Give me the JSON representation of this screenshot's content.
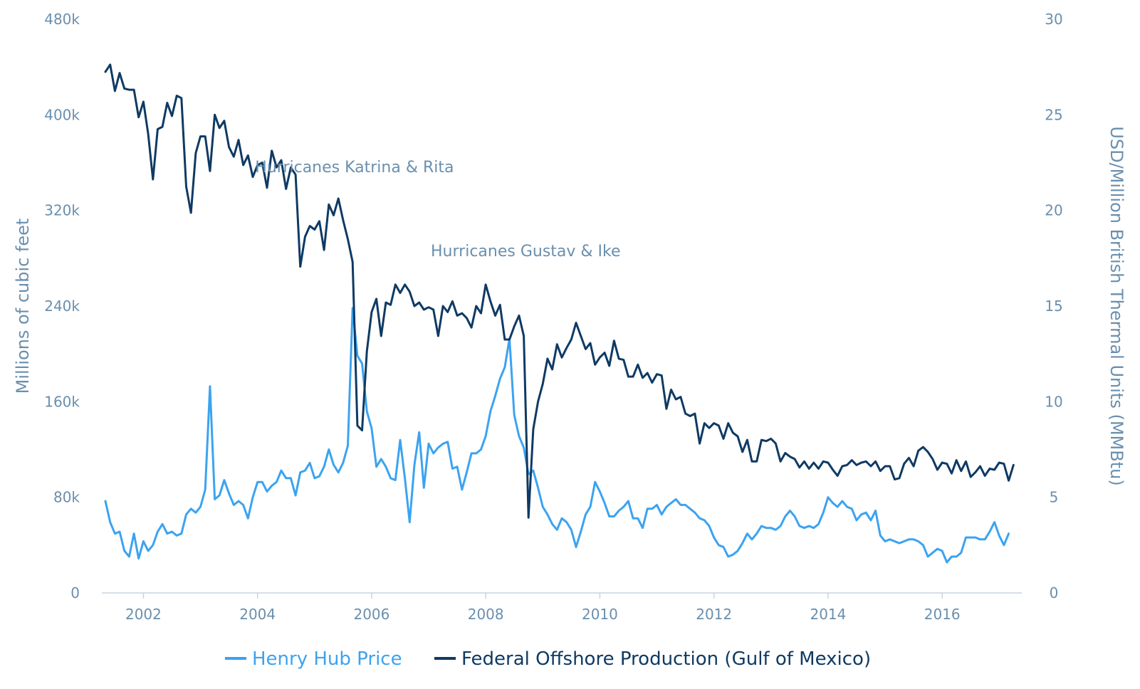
{
  "chart_data": {
    "type": "line",
    "left_axis": {
      "label": "Millions of cubic feet",
      "min": 0,
      "max": 480000,
      "ticks": [
        0,
        80000,
        160000,
        240000,
        320000,
        400000,
        480000
      ],
      "tick_labels": [
        "0",
        "80k",
        "160k",
        "240k",
        "320k",
        "400k",
        "480k"
      ]
    },
    "right_axis": {
      "label": "USD/Million British Thermal Units (MMBtu)",
      "min": 0,
      "max": 30,
      "ticks": [
        0,
        5,
        10,
        15,
        20,
        25,
        30
      ],
      "tick_labels": [
        "0",
        "5",
        "10",
        "15",
        "20",
        "25",
        "30"
      ]
    },
    "x_axis": {
      "min": 2001.333,
      "max": 2017.333,
      "ticks": [
        2002,
        2004,
        2006,
        2008,
        2010,
        2012,
        2014,
        2016
      ],
      "tick_labels": [
        "2002",
        "2004",
        "2006",
        "2008",
        "2010",
        "2012",
        "2014",
        "2016"
      ]
    },
    "annotations": [
      {
        "text": "Hurricanes Katrina & Rita",
        "x": 2005.7
      },
      {
        "text": "Hurricanes Gustav & Ike",
        "x": 2008.7
      }
    ],
    "legend_position": "bottom-center",
    "grid": false,
    "series": [
      {
        "name": "Henry Hub Price",
        "axis": "right",
        "color": "#3ba3f0",
        "x_start": 2001.333,
        "x_step": 0.08333,
        "values": [
          4.8,
          3.7,
          3.1,
          3.2,
          2.2,
          1.9,
          3.1,
          1.8,
          2.7,
          2.2,
          2.5,
          3.2,
          3.6,
          3.1,
          3.2,
          3.0,
          3.1,
          4.1,
          4.4,
          4.2,
          4.5,
          5.4,
          10.8,
          4.9,
          5.1,
          5.9,
          5.2,
          4.6,
          4.8,
          4.6,
          3.9,
          5.0,
          5.8,
          5.8,
          5.3,
          5.6,
          5.8,
          6.4,
          6.0,
          6.0,
          5.1,
          6.3,
          6.4,
          6.8,
          6.0,
          6.1,
          6.6,
          7.5,
          6.7,
          6.3,
          6.8,
          7.7,
          14.9,
          12.4,
          12.0,
          9.5,
          8.6,
          6.6,
          7.0,
          6.6,
          6.0,
          5.9,
          8.0,
          6.0,
          3.7,
          6.7,
          8.4,
          5.5,
          7.8,
          7.3,
          7.6,
          7.8,
          7.9,
          6.5,
          6.6,
          5.4,
          6.3,
          7.3,
          7.3,
          7.5,
          8.2,
          9.5,
          10.3,
          11.2,
          11.8,
          13.3,
          9.3,
          8.2,
          7.6,
          6.2,
          6.4,
          5.5,
          4.5,
          4.1,
          3.6,
          3.3,
          3.9,
          3.7,
          3.3,
          2.4,
          3.2,
          4.1,
          4.5,
          5.8,
          5.3,
          4.7,
          4.0,
          4.0,
          4.3,
          4.5,
          4.8,
          3.9,
          3.9,
          3.4,
          4.4,
          4.4,
          4.6,
          4.1,
          4.5,
          4.7,
          4.9,
          4.6,
          4.6,
          4.4,
          4.2,
          3.9,
          3.8,
          3.5,
          2.9,
          2.5,
          2.4,
          1.9,
          2.0,
          2.2,
          2.6,
          3.1,
          2.8,
          3.1,
          3.5,
          3.4,
          3.4,
          3.3,
          3.5,
          4.0,
          4.3,
          4.0,
          3.5,
          3.4,
          3.5,
          3.4,
          3.6,
          4.2,
          5.0,
          4.7,
          4.5,
          4.8,
          4.5,
          4.4,
          3.8,
          4.1,
          4.2,
          3.8,
          4.3,
          3.0,
          2.7,
          2.8,
          2.7,
          2.6,
          2.7,
          2.8,
          2.8,
          2.7,
          2.5,
          1.9,
          2.1,
          2.3,
          2.2,
          1.6,
          1.9,
          1.9,
          2.1,
          2.9,
          2.9,
          2.9,
          2.8,
          2.8,
          3.2,
          3.7,
          3.0,
          2.5,
          3.1
        ]
      },
      {
        "name": "Federal Offshore Production (Gulf of Mexico)",
        "axis": "left",
        "color": "#0f3a63",
        "x_start": 2001.333,
        "x_step": 0.08333,
        "values": [
          436000,
          442000,
          420000,
          435000,
          422000,
          421000,
          421000,
          398000,
          411000,
          384000,
          346000,
          388000,
          390000,
          410000,
          399000,
          416000,
          414000,
          340000,
          318000,
          368000,
          382000,
          382000,
          353000,
          400000,
          389000,
          395000,
          373000,
          365000,
          379000,
          358000,
          366000,
          348000,
          358000,
          360000,
          339000,
          370000,
          356000,
          362000,
          338000,
          356000,
          350000,
          273000,
          298000,
          307000,
          304000,
          311000,
          287000,
          325000,
          316000,
          330000,
          312000,
          296000,
          277000,
          140000,
          136000,
          202000,
          235000,
          246000,
          215000,
          243000,
          241000,
          258000,
          251000,
          258000,
          252000,
          240000,
          243000,
          237000,
          239000,
          237000,
          215000,
          240000,
          235000,
          244000,
          232000,
          234000,
          230000,
          222000,
          240000,
          234000,
          258000,
          244000,
          232000,
          241000,
          212000,
          212000,
          223000,
          232000,
          215000,
          63000,
          137000,
          160000,
          175000,
          196000,
          187000,
          208000,
          197000,
          205000,
          212000,
          226000,
          215000,
          204000,
          209000,
          191000,
          197000,
          201000,
          190000,
          211000,
          196000,
          195000,
          181000,
          181000,
          191000,
          180000,
          184000,
          176000,
          183000,
          182000,
          154000,
          170000,
          162000,
          164000,
          150000,
          148000,
          150000,
          125000,
          142000,
          138000,
          142000,
          140000,
          129000,
          142000,
          134000,
          131000,
          118000,
          128000,
          110000,
          110000,
          128000,
          127000,
          129000,
          125000,
          110000,
          117000,
          114000,
          112000,
          105000,
          110000,
          104000,
          109000,
          104000,
          110000,
          109000,
          103000,
          98000,
          106000,
          107000,
          111000,
          107000,
          109000,
          110000,
          106000,
          110000,
          102000,
          106000,
          106000,
          95000,
          96000,
          108000,
          113000,
          106000,
          119000,
          122000,
          118000,
          112000,
          103000,
          109000,
          108000,
          100000,
          111000,
          102000,
          110000,
          97000,
          101000,
          106000,
          98000,
          104000,
          103000,
          109000,
          108000,
          94000,
          107000
        ]
      }
    ]
  }
}
